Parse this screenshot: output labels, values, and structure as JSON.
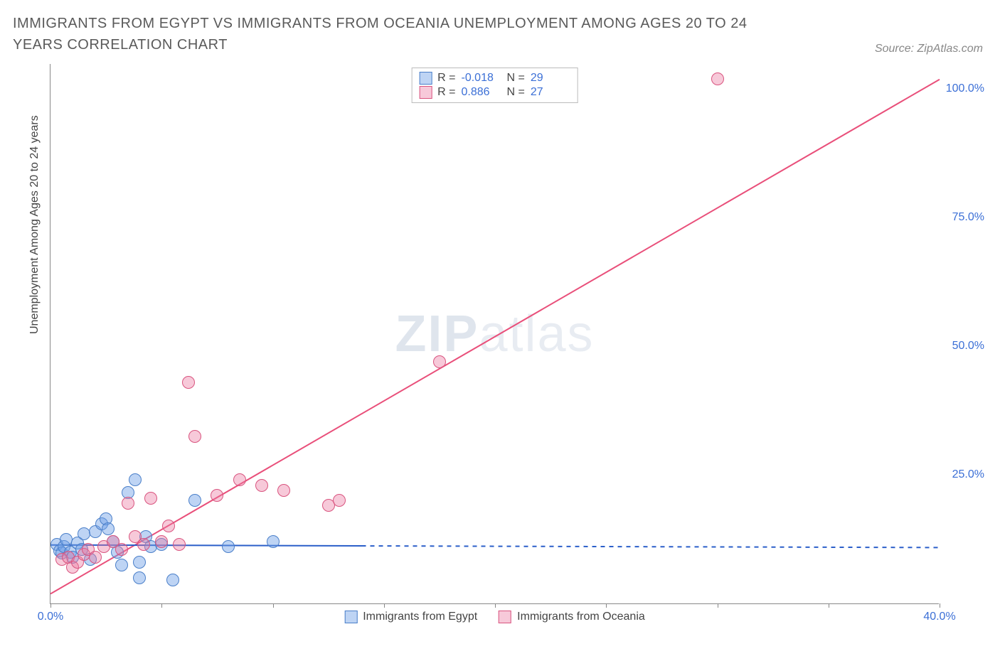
{
  "title": "IMMIGRANTS FROM EGYPT VS IMMIGRANTS FROM OCEANIA UNEMPLOYMENT AMONG AGES 20 TO 24 YEARS CORRELATION CHART",
  "source_label": "Source:",
  "source_value": "ZipAtlas.com",
  "y_axis_label": "Unemployment Among Ages 20 to 24 years",
  "watermark_bold": "ZIP",
  "watermark_light": "atlas",
  "chart": {
    "type": "scatter",
    "background_color": "#ffffff",
    "axis_color": "#888888",
    "xlim": [
      0,
      40
    ],
    "ylim": [
      0,
      105
    ],
    "x_ticks": [
      0,
      5,
      10,
      15,
      20,
      25,
      30,
      35,
      40
    ],
    "x_tick_labels": {
      "0": "0.0%",
      "40": "40.0%"
    },
    "y_ticks": [
      25,
      50,
      75,
      100
    ],
    "y_tick_labels": {
      "25": "25.0%",
      "50": "50.0%",
      "75": "75.0%",
      "100": "100.0%"
    },
    "tick_label_color": "#3b6fd6",
    "tick_label_fontsize": 16,
    "series": [
      {
        "name": "Immigrants from Egypt",
        "marker_fill": "rgba(110,160,230,0.45)",
        "marker_stroke": "#4a7fc9",
        "marker_radius": 9,
        "trend_color": "#2b5fc9",
        "trend_width": 2,
        "trend_solid_until_x": 14,
        "trend": {
          "x1": 0,
          "y1": 11.5,
          "x2": 40,
          "y2": 11.0
        },
        "R_label": "R =",
        "R": "-0.018",
        "N_label": "N =",
        "N": "29",
        "points": [
          [
            0.3,
            11.5
          ],
          [
            0.4,
            10.2
          ],
          [
            0.5,
            9.8
          ],
          [
            0.6,
            11.0
          ],
          [
            0.7,
            12.5
          ],
          [
            0.9,
            10.0
          ],
          [
            1.0,
            9.0
          ],
          [
            1.2,
            11.8
          ],
          [
            1.4,
            10.5
          ],
          [
            1.5,
            13.5
          ],
          [
            1.8,
            8.5
          ],
          [
            2.0,
            14.0
          ],
          [
            2.3,
            15.5
          ],
          [
            2.5,
            16.5
          ],
          [
            2.6,
            14.5
          ],
          [
            2.8,
            12.0
          ],
          [
            3.0,
            10.0
          ],
          [
            3.2,
            7.5
          ],
          [
            3.5,
            21.5
          ],
          [
            3.8,
            24.0
          ],
          [
            4.0,
            8.0
          ],
          [
            4.0,
            5.0
          ],
          [
            4.3,
            13.0
          ],
          [
            4.5,
            11.0
          ],
          [
            5.0,
            11.5
          ],
          [
            5.5,
            4.5
          ],
          [
            6.5,
            20.0
          ],
          [
            8.0,
            11.0
          ],
          [
            10.0,
            12.0
          ]
        ]
      },
      {
        "name": "Immigrants from Oceania",
        "marker_fill": "rgba(235,120,160,0.40)",
        "marker_stroke": "#d9547f",
        "marker_radius": 9,
        "trend_color": "#e94f7a",
        "trend_width": 2,
        "trend": {
          "x1": 0,
          "y1": 2.0,
          "x2": 40,
          "y2": 102.0
        },
        "R_label": "R =",
        "R": "0.886",
        "N_label": "N =",
        "N": "27",
        "points": [
          [
            0.5,
            8.5
          ],
          [
            0.8,
            9.0
          ],
          [
            1.0,
            7.0
          ],
          [
            1.2,
            8.0
          ],
          [
            1.5,
            9.5
          ],
          [
            1.7,
            10.5
          ],
          [
            2.0,
            9.0
          ],
          [
            2.4,
            11.0
          ],
          [
            2.8,
            12.0
          ],
          [
            3.2,
            10.5
          ],
          [
            3.5,
            19.5
          ],
          [
            3.8,
            13.0
          ],
          [
            4.2,
            11.5
          ],
          [
            4.5,
            20.5
          ],
          [
            5.0,
            12.0
          ],
          [
            5.3,
            15.0
          ],
          [
            5.8,
            11.5
          ],
          [
            6.2,
            43.0
          ],
          [
            6.5,
            32.5
          ],
          [
            7.5,
            21.0
          ],
          [
            8.5,
            24.0
          ],
          [
            9.5,
            23.0
          ],
          [
            10.5,
            22.0
          ],
          [
            12.5,
            19.0
          ],
          [
            13.0,
            20.0
          ],
          [
            17.5,
            47.0
          ],
          [
            30.0,
            102.0
          ]
        ]
      }
    ]
  }
}
